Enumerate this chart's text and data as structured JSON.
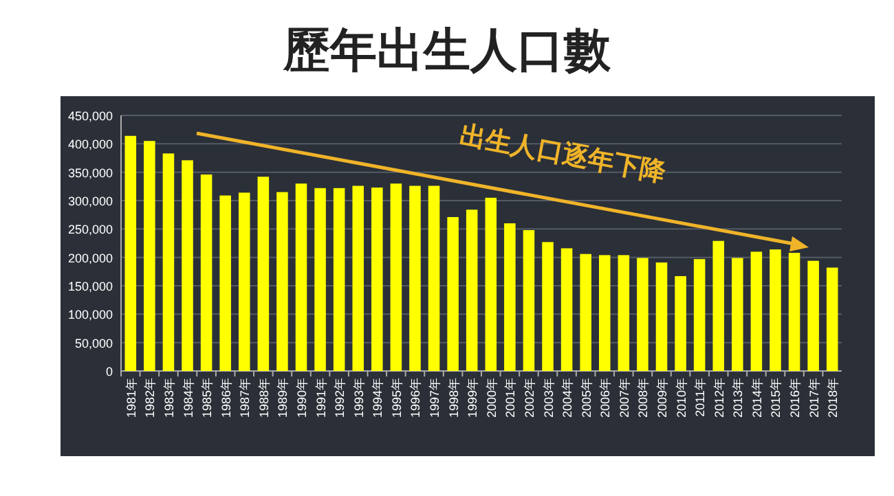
{
  "chart_data": {
    "type": "bar",
    "title": "歷年出生人口數",
    "categories": [
      "1981年",
      "1982年",
      "1983年",
      "1984年",
      "1985年",
      "1986年",
      "1987年",
      "1988年",
      "1989年",
      "1990年",
      "1991年",
      "1992年",
      "1993年",
      "1994年",
      "1995年",
      "1996年",
      "1997年",
      "1998年",
      "1999年",
      "2000年",
      "2001年",
      "2002年",
      "2003年",
      "2004年",
      "2005年",
      "2006年",
      "2007年",
      "2008年",
      "2009年",
      "2010年",
      "2011年",
      "2012年",
      "2013年",
      "2014年",
      "2015年",
      "2016年",
      "2017年",
      "2018年"
    ],
    "series": [
      {
        "color": "#ffff00",
        "values": [
          414000,
          405000,
          383000,
          371000,
          346000,
          309000,
          314000,
          342000,
          315000,
          330000,
          322000,
          322000,
          326000,
          323000,
          330000,
          326000,
          326000,
          271000,
          284000,
          305000,
          260000,
          248000,
          227000,
          216000,
          206000,
          204000,
          204000,
          199000,
          191000,
          167000,
          197000,
          229000,
          199000,
          210000,
          214000,
          208000,
          194000,
          182000
        ]
      }
    ],
    "ylim": [
      0,
      450000
    ],
    "yticks": [
      {
        "value": 0,
        "label": "0"
      },
      {
        "value": 50000,
        "label": "50,000"
      },
      {
        "value": 100000,
        "label": "100,000"
      },
      {
        "value": 150000,
        "label": "150,000"
      },
      {
        "value": 200000,
        "label": "200,000"
      },
      {
        "value": 250000,
        "label": "250,000"
      },
      {
        "value": 300000,
        "label": "300,000"
      },
      {
        "value": 350000,
        "label": "350,000"
      },
      {
        "value": 400000,
        "label": "400,000"
      },
      {
        "value": 450000,
        "label": "450,000"
      }
    ],
    "grid": "y",
    "annotations": [
      "出生人口逐年下降"
    ]
  }
}
